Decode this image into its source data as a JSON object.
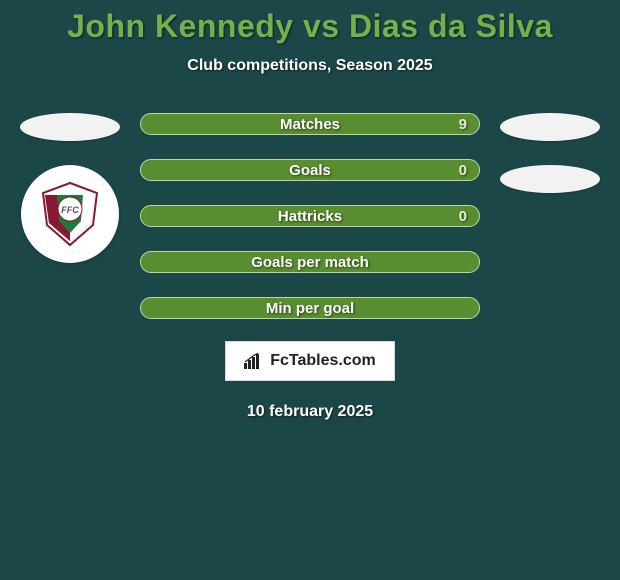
{
  "colors": {
    "page_bg": "#1c4748",
    "title_color": "#76b04d",
    "subtitle_color": "#ffffff",
    "oval_fill": "#f2f2f2",
    "bar_fill": "#588e2f",
    "bar_border": "#bcd9a3",
    "bar_text": "#ffffff",
    "bar_value": "#e2efd6",
    "date_color": "#ffffff"
  },
  "title": {
    "player1": "John Kennedy",
    "vs": "vs",
    "player2": "Dias da Silva"
  },
  "subtitle": "Club competitions, Season 2025",
  "bars": [
    {
      "label": "Matches",
      "value": "9"
    },
    {
      "label": "Goals",
      "value": "0"
    },
    {
      "label": "Hattricks",
      "value": "0"
    },
    {
      "label": "Goals per match",
      "value": ""
    },
    {
      "label": "Min per goal",
      "value": ""
    }
  ],
  "branding": "FcTables.com",
  "date": "10 february 2025",
  "badge": {
    "bg": "#ffffff",
    "stripes": [
      "#8a1832",
      "#1c7a3a",
      "#8a1832"
    ],
    "center_text": "FFC",
    "center_text_color": "#444444"
  }
}
